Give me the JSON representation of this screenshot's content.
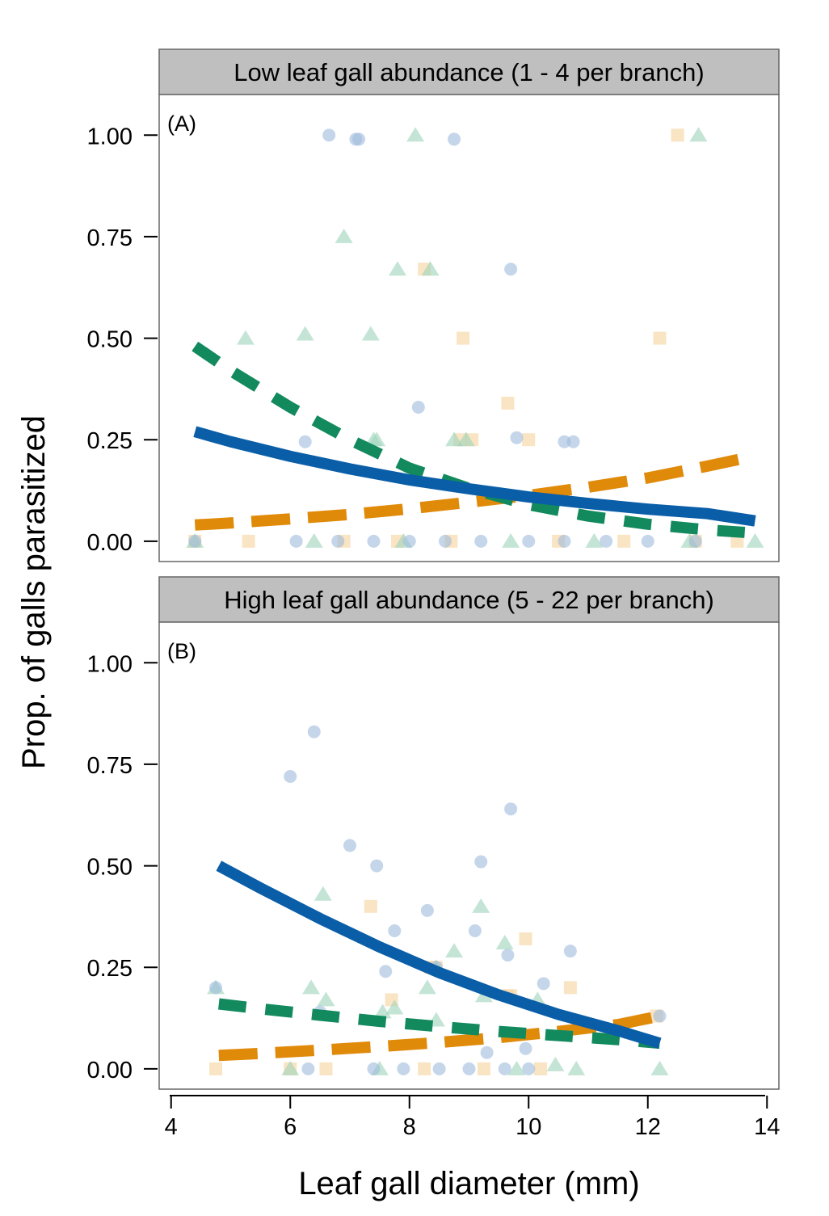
{
  "chart_data": {
    "type": "scatter",
    "ylabel": "Prop. of galls parasitized",
    "xlabel": "Leaf gall diameter (mm)",
    "xlim": [
      3.8,
      14.2
    ],
    "xticks": [
      4,
      6,
      8,
      10,
      12,
      14
    ],
    "x_tick_labels": [
      "4",
      "6",
      "8",
      "10",
      "12",
      "14"
    ],
    "ylim": [
      -0.05,
      1.1
    ],
    "yticks": [
      0,
      0.25,
      0.5,
      0.75,
      1.0
    ],
    "y_tick_labels": [
      "0.00",
      "0.25",
      "0.50",
      "0.75",
      "1.00"
    ],
    "grid": false,
    "legend": "none",
    "series_styles": [
      {
        "key": "blue",
        "color": "#0a5ea8",
        "marker": "circle",
        "line": "solid"
      },
      {
        "key": "green",
        "color": "#138a5e",
        "marker": "triangle",
        "line": "dashed"
      },
      {
        "key": "orange",
        "color": "#e08a0a",
        "marker": "square",
        "line": "dashed-long"
      }
    ],
    "panels": [
      {
        "strip": "Low leaf gall abundance (1 - 4 per branch)",
        "label": "(A)",
        "points": {
          "blue": [
            [
              6.65,
              1.0
            ],
            [
              7.1,
              0.99
            ],
            [
              7.15,
              0.99
            ],
            [
              8.75,
              0.99
            ],
            [
              9.7,
              0.67
            ],
            [
              8.15,
              0.33
            ],
            [
              6.25,
              0.245
            ],
            [
              9.8,
              0.255
            ],
            [
              10.6,
              0.245
            ],
            [
              10.75,
              0.245
            ],
            [
              4.4,
              0.0
            ],
            [
              6.1,
              0.0
            ],
            [
              6.8,
              0.0
            ],
            [
              7.4,
              0.0
            ],
            [
              8.0,
              0.0
            ],
            [
              8.6,
              0.0
            ],
            [
              9.2,
              0.0
            ],
            [
              10.0,
              0.0
            ],
            [
              10.6,
              0.0
            ],
            [
              11.3,
              0.0
            ],
            [
              12.0,
              0.0
            ],
            [
              12.8,
              0.0
            ]
          ],
          "green": [
            [
              8.1,
              1.0
            ],
            [
              12.85,
              1.0
            ],
            [
              6.9,
              0.75
            ],
            [
              7.8,
              0.67
            ],
            [
              8.35,
              0.67
            ],
            [
              5.25,
              0.5
            ],
            [
              6.25,
              0.51
            ],
            [
              7.35,
              0.51
            ],
            [
              7.4,
              0.25
            ],
            [
              7.45,
              0.25
            ],
            [
              8.75,
              0.25
            ],
            [
              8.95,
              0.25
            ],
            [
              4.4,
              0.0
            ],
            [
              6.4,
              0.0
            ],
            [
              7.9,
              0.0
            ],
            [
              9.7,
              0.0
            ],
            [
              11.1,
              0.0
            ],
            [
              12.7,
              0.0
            ],
            [
              13.8,
              0.0
            ]
          ],
          "orange": [
            [
              12.5,
              1.0
            ],
            [
              8.25,
              0.67
            ],
            [
              8.9,
              0.5
            ],
            [
              12.2,
              0.5
            ],
            [
              9.65,
              0.34
            ],
            [
              10.0,
              0.25
            ],
            [
              8.85,
              0.25
            ],
            [
              9.05,
              0.25
            ],
            [
              4.4,
              0.0
            ],
            [
              5.3,
              0.0
            ],
            [
              6.9,
              0.0
            ],
            [
              7.8,
              0.0
            ],
            [
              8.7,
              0.0
            ],
            [
              10.5,
              0.0
            ],
            [
              11.6,
              0.0
            ],
            [
              12.8,
              0.0
            ],
            [
              13.5,
              0.0
            ]
          ]
        },
        "curves": {
          "blue": {
            "x": [
              4.4,
              5.0,
              6.0,
              7.0,
              8.0,
              9.0,
              10.0,
              11.0,
              12.0,
              13.0,
              13.8
            ],
            "y": [
              0.27,
              0.245,
              0.209,
              0.178,
              0.151,
              0.129,
              0.109,
              0.093,
              0.079,
              0.068,
              0.05
            ]
          },
          "green": {
            "x": [
              4.4,
              5.0,
              6.0,
              7.0,
              8.0,
              9.0,
              10.0,
              11.0,
              12.0,
              13.0,
              13.8
            ],
            "y": [
              0.48,
              0.42,
              0.33,
              0.25,
              0.18,
              0.13,
              0.09,
              0.062,
              0.042,
              0.028,
              0.02
            ]
          },
          "orange": {
            "x": [
              4.4,
              5.0,
              6.0,
              7.0,
              8.0,
              9.0,
              10.0,
              11.0,
              12.0,
              13.0,
              13.8
            ],
            "y": [
              0.04,
              0.045,
              0.055,
              0.066,
              0.08,
              0.096,
              0.113,
              0.133,
              0.156,
              0.185,
              0.21
            ]
          }
        }
      },
      {
        "strip": "High leaf gall abundance (5 - 22 per branch)",
        "label": "(B)",
        "points": {
          "blue": [
            [
              6.4,
              0.83
            ],
            [
              6.0,
              0.72
            ],
            [
              9.7,
              0.64
            ],
            [
              7.0,
              0.55
            ],
            [
              9.2,
              0.51
            ],
            [
              7.45,
              0.5
            ],
            [
              8.3,
              0.39
            ],
            [
              7.75,
              0.34
            ],
            [
              9.1,
              0.34
            ],
            [
              9.65,
              0.28
            ],
            [
              10.7,
              0.29
            ],
            [
              7.6,
              0.24
            ],
            [
              8.45,
              0.25
            ],
            [
              10.25,
              0.21
            ],
            [
              4.75,
              0.2
            ],
            [
              6.5,
              0.14
            ],
            [
              9.3,
              0.04
            ],
            [
              9.95,
              0.05
            ],
            [
              12.2,
              0.13
            ],
            [
              6.3,
              0.0
            ],
            [
              7.4,
              0.0
            ],
            [
              7.9,
              0.0
            ],
            [
              8.5,
              0.0
            ],
            [
              9.0,
              0.0
            ],
            [
              9.6,
              0.0
            ],
            [
              10.0,
              0.0
            ]
          ],
          "green": [
            [
              6.55,
              0.43
            ],
            [
              9.2,
              0.4
            ],
            [
              8.75,
              0.29
            ],
            [
              9.6,
              0.31
            ],
            [
              8.45,
              0.25
            ],
            [
              9.25,
              0.18
            ],
            [
              10.15,
              0.17
            ],
            [
              6.35,
              0.2
            ],
            [
              6.6,
              0.17
            ],
            [
              4.75,
              0.2
            ],
            [
              7.55,
              0.14
            ],
            [
              7.75,
              0.15
            ],
            [
              8.3,
              0.2
            ],
            [
              8.45,
              0.12
            ],
            [
              10.45,
              0.01
            ],
            [
              12.2,
              0.0
            ],
            [
              6.0,
              0.0
            ],
            [
              7.5,
              0.0
            ],
            [
              9.8,
              0.0
            ],
            [
              10.8,
              0.0
            ]
          ],
          "orange": [
            [
              7.35,
              0.4
            ],
            [
              9.95,
              0.32
            ],
            [
              8.45,
              0.25
            ],
            [
              8.35,
              0.25
            ],
            [
              10.7,
              0.2
            ],
            [
              9.65,
              0.18
            ],
            [
              9.7,
              0.18
            ],
            [
              7.7,
              0.17
            ],
            [
              4.75,
              0.0
            ],
            [
              6.0,
              0.0
            ],
            [
              6.6,
              0.0
            ],
            [
              8.25,
              0.0
            ],
            [
              9.25,
              0.0
            ],
            [
              10.2,
              0.0
            ],
            [
              12.15,
              0.13
            ]
          ]
        },
        "curves": {
          "blue": {
            "x": [
              4.8,
              5.5,
              6.5,
              7.5,
              8.5,
              9.5,
              10.5,
              11.5,
              12.2
            ],
            "y": [
              0.5,
              0.445,
              0.37,
              0.3,
              0.237,
              0.182,
              0.134,
              0.094,
              0.063
            ]
          },
          "green": {
            "x": [
              4.8,
              5.5,
              6.5,
              7.5,
              8.5,
              9.5,
              10.5,
              11.5,
              12.2
            ],
            "y": [
              0.16,
              0.148,
              0.132,
              0.117,
              0.104,
              0.092,
              0.082,
              0.072,
              0.063
            ]
          },
          "orange": {
            "x": [
              4.8,
              5.5,
              6.5,
              7.5,
              8.5,
              9.5,
              10.5,
              11.5,
              12.2
            ],
            "y": [
              0.033,
              0.038,
              0.046,
              0.055,
              0.065,
              0.077,
              0.092,
              0.109,
              0.13
            ]
          }
        }
      }
    ]
  }
}
